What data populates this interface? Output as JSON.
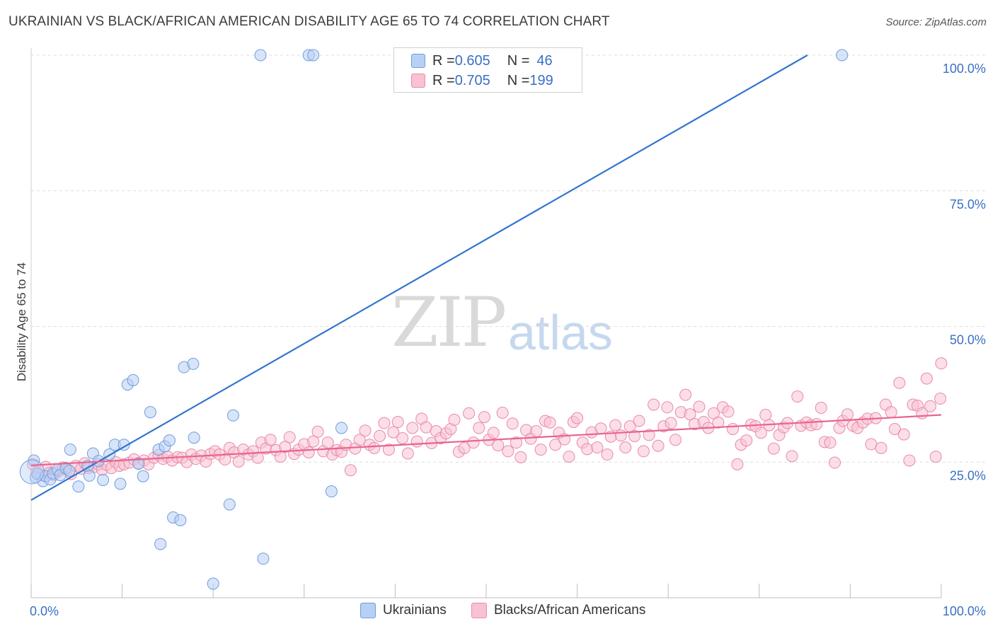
{
  "title": "UKRAINIAN VS BLACK/AFRICAN AMERICAN DISABILITY AGE 65 TO 74 CORRELATION CHART",
  "source": "Source: ZipAtlas.com",
  "watermark": {
    "part1": "ZIP",
    "part2": "atlas"
  },
  "legend": {
    "rows": [
      {
        "r_label": "R = ",
        "r_value": "0.605",
        "n_label": "N = ",
        "n_value": "46"
      },
      {
        "r_label": "R = ",
        "r_value": "0.705",
        "n_label": "N = ",
        "n_value": "199"
      }
    ]
  },
  "bottom_legend": [
    "Ukrainians",
    "Blacks/African Americans"
  ],
  "colors": {
    "blue_fill": "#b8d0f4",
    "blue_stroke": "#6f9de0",
    "blue_line": "#3374d0",
    "pink_fill": "#f8c2d3",
    "pink_stroke": "#ea8aa8",
    "pink_line": "#e8648e",
    "axis_text": "#3a70c4",
    "grid": "#dedede"
  },
  "chart_data": {
    "type": "scatter",
    "title": "UKRAINIAN VS BLACK/AFRICAN AMERICAN DISABILITY AGE 65 TO 74 CORRELATION CHART",
    "xlabel": "",
    "ylabel": "Disability Age 65 to 74",
    "xlim": [
      0,
      100
    ],
    "ylim": [
      0,
      100
    ],
    "x_ticks": [
      0,
      10,
      20,
      30,
      40,
      50,
      60,
      70,
      80,
      90,
      100
    ],
    "x_tick_labels": {
      "0": "0.0%",
      "100": "100.0%"
    },
    "y_ticks": [
      25,
      50,
      75,
      100
    ],
    "y_tick_labels": [
      "25.0%",
      "50.0%",
      "75.0%",
      "100.0%"
    ],
    "series": [
      {
        "name": "Ukrainians",
        "R": 0.605,
        "N": 46,
        "trend": {
          "x0": 0,
          "y0": 18,
          "x1": 85.3,
          "y1": 100
        },
        "points": [
          [
            0.3,
            25.3
          ],
          [
            0.5,
            22.2
          ],
          [
            0.7,
            22.8
          ],
          [
            1.3,
            21.5
          ],
          [
            1.6,
            22.4
          ],
          [
            2.1,
            21.8
          ],
          [
            2.4,
            22.9
          ],
          [
            2.9,
            23.6
          ],
          [
            3.2,
            22.6
          ],
          [
            3.8,
            23.9
          ],
          [
            4.2,
            23.4
          ],
          [
            4.3,
            27.3
          ],
          [
            5.2,
            20.5
          ],
          [
            6.2,
            24.3
          ],
          [
            6.4,
            22.5
          ],
          [
            6.8,
            26.6
          ],
          [
            7.4,
            25.2
          ],
          [
            7.9,
            21.7
          ],
          [
            8.6,
            26.4
          ],
          [
            9.2,
            28.2
          ],
          [
            9.8,
            21.0
          ],
          [
            10.2,
            28.2
          ],
          [
            10.6,
            39.3
          ],
          [
            11.2,
            40.1
          ],
          [
            11.8,
            24.7
          ],
          [
            12.3,
            22.4
          ],
          [
            13.1,
            34.2
          ],
          [
            14.0,
            27.3
          ],
          [
            14.2,
            9.9
          ],
          [
            14.7,
            27.9
          ],
          [
            15.2,
            29.0
          ],
          [
            15.6,
            14.8
          ],
          [
            16.4,
            14.3
          ],
          [
            16.8,
            42.5
          ],
          [
            17.8,
            43.1
          ],
          [
            17.9,
            29.5
          ],
          [
            20.0,
            2.6
          ],
          [
            21.8,
            17.2
          ],
          [
            22.2,
            33.6
          ],
          [
            25.2,
            100
          ],
          [
            25.5,
            7.2
          ],
          [
            30.5,
            100
          ],
          [
            31.0,
            100
          ],
          [
            33.0,
            19.6
          ],
          [
            34.1,
            31.3
          ],
          [
            89.1,
            100
          ]
        ]
      },
      {
        "name": "Blacks/African Americans",
        "R": 0.705,
        "N": 199,
        "trend": {
          "x0": 0,
          "y0": 24.4,
          "x1": 100,
          "y1": 33.7
        },
        "points": [
          [
            0.2,
            24.6
          ],
          [
            0.6,
            23.1
          ],
          [
            1.1,
            22.6
          ],
          [
            1.6,
            24.1
          ],
          [
            2.0,
            23.0
          ],
          [
            2.5,
            22.6
          ],
          [
            3.0,
            23.3
          ],
          [
            3.5,
            24.0
          ],
          [
            3.9,
            23.6
          ],
          [
            4.4,
            22.8
          ],
          [
            4.9,
            24.3
          ],
          [
            5.5,
            23.8
          ],
          [
            5.9,
            24.8
          ],
          [
            6.3,
            23.9
          ],
          [
            6.9,
            24.1
          ],
          [
            7.4,
            24.6
          ],
          [
            7.8,
            23.6
          ],
          [
            8.3,
            24.5
          ],
          [
            8.8,
            23.9
          ],
          [
            9.3,
            25.0
          ],
          [
            9.7,
            24.3
          ],
          [
            10.2,
            24.6
          ],
          [
            10.8,
            24.9
          ],
          [
            11.3,
            25.5
          ],
          [
            11.8,
            24.8
          ],
          [
            12.4,
            25.3
          ],
          [
            12.9,
            24.6
          ],
          [
            13.5,
            25.8
          ],
          [
            14.0,
            26.3
          ],
          [
            14.5,
            25.6
          ],
          [
            15.0,
            26.0
          ],
          [
            15.5,
            25.3
          ],
          [
            16.1,
            25.9
          ],
          [
            16.6,
            25.8
          ],
          [
            17.1,
            25.0
          ],
          [
            17.6,
            26.4
          ],
          [
            18.1,
            25.6
          ],
          [
            18.7,
            26.2
          ],
          [
            19.2,
            25.1
          ],
          [
            19.7,
            26.5
          ],
          [
            20.2,
            27.0
          ],
          [
            20.7,
            26.4
          ],
          [
            21.3,
            25.5
          ],
          [
            21.8,
            27.6
          ],
          [
            22.3,
            26.8
          ],
          [
            22.8,
            25.1
          ],
          [
            23.3,
            27.3
          ],
          [
            23.9,
            26.4
          ],
          [
            24.4,
            27.0
          ],
          [
            24.9,
            25.8
          ],
          [
            25.3,
            28.6
          ],
          [
            25.8,
            27.5
          ],
          [
            26.3,
            29.1
          ],
          [
            26.9,
            27.2
          ],
          [
            27.4,
            26.0
          ],
          [
            27.9,
            27.8
          ],
          [
            28.4,
            29.6
          ],
          [
            28.9,
            26.5
          ],
          [
            29.4,
            27.3
          ],
          [
            30.0,
            28.3
          ],
          [
            30.5,
            26.8
          ],
          [
            31.0,
            28.8
          ],
          [
            31.5,
            30.6
          ],
          [
            32.1,
            27.0
          ],
          [
            32.6,
            28.6
          ],
          [
            33.1,
            26.4
          ],
          [
            33.6,
            27.2
          ],
          [
            34.1,
            26.9
          ],
          [
            34.6,
            28.2
          ],
          [
            35.1,
            23.5
          ],
          [
            35.6,
            27.5
          ],
          [
            36.1,
            29.1
          ],
          [
            36.7,
            30.8
          ],
          [
            37.2,
            28.2
          ],
          [
            37.7,
            27.6
          ],
          [
            38.3,
            29.8
          ],
          [
            38.8,
            32.2
          ],
          [
            39.3,
            27.3
          ],
          [
            39.8,
            30.5
          ],
          [
            40.3,
            32.4
          ],
          [
            40.8,
            29.4
          ],
          [
            41.4,
            26.6
          ],
          [
            41.9,
            31.3
          ],
          [
            42.4,
            28.8
          ],
          [
            42.9,
            33.0
          ],
          [
            43.4,
            31.4
          ],
          [
            44.0,
            28.5
          ],
          [
            44.5,
            30.7
          ],
          [
            45.0,
            29.4
          ],
          [
            45.6,
            30.3
          ],
          [
            46.1,
            31.1
          ],
          [
            46.5,
            32.8
          ],
          [
            47.0,
            26.9
          ],
          [
            47.6,
            27.6
          ],
          [
            48.1,
            34.0
          ],
          [
            48.6,
            28.6
          ],
          [
            49.2,
            31.3
          ],
          [
            49.8,
            33.3
          ],
          [
            50.3,
            29.1
          ],
          [
            50.8,
            30.4
          ],
          [
            51.3,
            28.1
          ],
          [
            51.8,
            34.1
          ],
          [
            52.4,
            27.0
          ],
          [
            52.9,
            32.1
          ],
          [
            53.3,
            28.6
          ],
          [
            53.8,
            25.9
          ],
          [
            54.4,
            30.9
          ],
          [
            54.9,
            29.3
          ],
          [
            55.5,
            30.7
          ],
          [
            56.0,
            27.3
          ],
          [
            56.5,
            32.6
          ],
          [
            57.0,
            32.3
          ],
          [
            57.6,
            28.2
          ],
          [
            58.0,
            30.4
          ],
          [
            58.6,
            29.2
          ],
          [
            59.1,
            26.0
          ],
          [
            59.6,
            32.4
          ],
          [
            60.0,
            33.1
          ],
          [
            60.6,
            28.6
          ],
          [
            61.1,
            27.4
          ],
          [
            61.6,
            30.5
          ],
          [
            62.2,
            27.7
          ],
          [
            62.6,
            31.2
          ],
          [
            63.3,
            26.4
          ],
          [
            63.7,
            29.7
          ],
          [
            64.2,
            31.8
          ],
          [
            64.8,
            29.9
          ],
          [
            65.3,
            27.7
          ],
          [
            65.8,
            31.6
          ],
          [
            66.3,
            29.8
          ],
          [
            66.8,
            32.6
          ],
          [
            67.3,
            27.0
          ],
          [
            67.9,
            30.0
          ],
          [
            68.4,
            35.6
          ],
          [
            68.9,
            28.0
          ],
          [
            69.5,
            31.6
          ],
          [
            69.9,
            35.1
          ],
          [
            70.3,
            32.2
          ],
          [
            70.8,
            29.1
          ],
          [
            71.4,
            34.2
          ],
          [
            71.9,
            37.4
          ],
          [
            72.4,
            33.8
          ],
          [
            72.9,
            32.0
          ],
          [
            73.4,
            35.2
          ],
          [
            73.9,
            32.4
          ],
          [
            74.4,
            31.3
          ],
          [
            75.0,
            34.0
          ],
          [
            75.5,
            32.3
          ],
          [
            76.0,
            35.1
          ],
          [
            76.6,
            34.3
          ],
          [
            77.1,
            31.1
          ],
          [
            77.6,
            24.6
          ],
          [
            78.0,
            28.2
          ],
          [
            78.6,
            29.0
          ],
          [
            79.1,
            31.9
          ],
          [
            79.6,
            31.6
          ],
          [
            80.2,
            30.4
          ],
          [
            80.7,
            33.7
          ],
          [
            81.1,
            31.8
          ],
          [
            81.6,
            27.5
          ],
          [
            82.2,
            30.0
          ],
          [
            82.7,
            31.4
          ],
          [
            83.1,
            32.2
          ],
          [
            83.6,
            26.1
          ],
          [
            84.2,
            37.1
          ],
          [
            84.6,
            31.7
          ],
          [
            85.2,
            32.3
          ],
          [
            85.7,
            31.8
          ],
          [
            86.3,
            32.0
          ],
          [
            86.8,
            35.0
          ],
          [
            87.2,
            28.7
          ],
          [
            87.8,
            28.6
          ],
          [
            88.3,
            24.9
          ],
          [
            88.8,
            31.3
          ],
          [
            89.2,
            32.6
          ],
          [
            89.7,
            33.8
          ],
          [
            90.3,
            31.7
          ],
          [
            90.8,
            31.3
          ],
          [
            91.4,
            32.3
          ],
          [
            91.9,
            33.0
          ],
          [
            92.3,
            28.3
          ],
          [
            92.8,
            33.1
          ],
          [
            93.4,
            27.6
          ],
          [
            93.9,
            35.6
          ],
          [
            94.5,
            34.2
          ],
          [
            94.9,
            31.1
          ],
          [
            95.4,
            39.6
          ],
          [
            95.9,
            30.1
          ],
          [
            96.5,
            25.3
          ],
          [
            96.9,
            35.6
          ],
          [
            97.4,
            35.4
          ],
          [
            97.9,
            34.0
          ],
          [
            98.4,
            40.4
          ],
          [
            98.8,
            35.3
          ],
          [
            99.4,
            26.0
          ],
          [
            99.9,
            36.7
          ],
          [
            100.0,
            43.2
          ]
        ]
      }
    ]
  }
}
